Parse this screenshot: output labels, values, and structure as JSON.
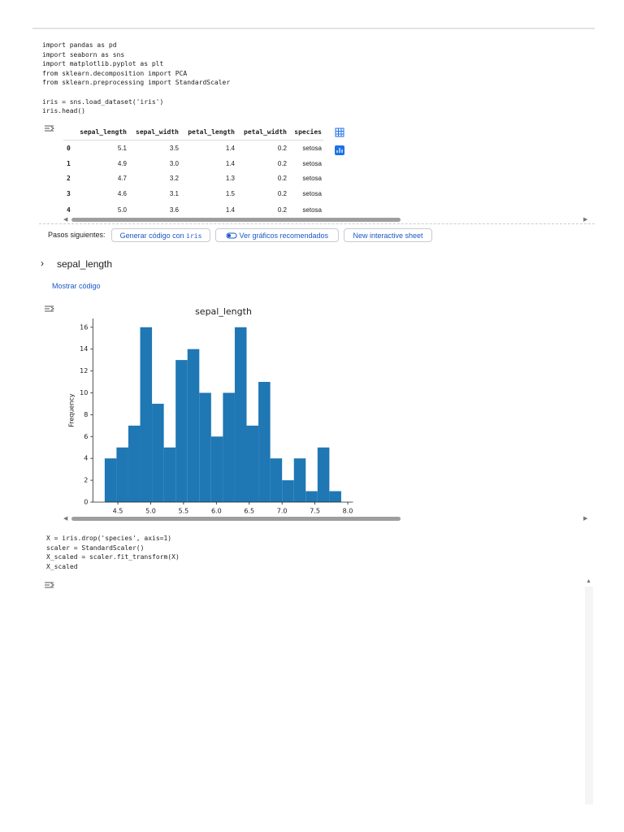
{
  "code_cell_1": {
    "lines": [
      "import pandas as pd",
      "import seaborn as sns",
      "import matplotlib.pyplot as plt",
      "from sklearn.decomposition import PCA",
      "from sklearn.preprocessing import StandardScaler",
      "iris = sns.load_dataset('iris')",
      "iris.head()"
    ]
  },
  "table": {
    "header": [
      "sepal_length",
      "sepal_width",
      "petal_length",
      "petal_width",
      "species"
    ],
    "rows": [
      [
        "0",
        "5.1",
        "3.5",
        "1.4",
        "0.2",
        "setosa"
      ],
      [
        "1",
        "4.9",
        "3.0",
        "1.4",
        "0.2",
        "setosa"
      ],
      [
        "2",
        "4.7",
        "3.2",
        "1.3",
        "0.2",
        "setosa"
      ],
      [
        "3",
        "4.6",
        "3.1",
        "1.5",
        "0.2",
        "setosa"
      ],
      [
        "4",
        "5.0",
        "3.6",
        "1.4",
        "0.2",
        "setosa"
      ]
    ]
  },
  "next_steps": {
    "label": "Pasos siguientes:",
    "buttons": [
      {
        "text": "Generar código con",
        "code": "iris"
      },
      {
        "text": "Ver gráficos recomendados"
      },
      {
        "text": "New interactive sheet"
      }
    ]
  },
  "section": {
    "title": "sepal_length",
    "show_code": "Mostrar código"
  },
  "chart_data": {
    "type": "histogram",
    "title": "sepal_length",
    "y_label": "Frequency",
    "color": "#1f77b4",
    "bins": [
      4.3,
      4.48,
      4.66,
      4.84,
      5.02,
      5.2,
      5.38,
      5.56,
      5.74,
      5.92,
      6.1,
      6.28,
      6.46,
      6.64,
      6.82,
      7.0,
      7.18,
      7.36,
      7.54,
      7.72,
      7.9
    ],
    "values": [
      4,
      5,
      7,
      16,
      9,
      5,
      13,
      14,
      10,
      6,
      10,
      16,
      7,
      11,
      4,
      2,
      4,
      1,
      5,
      1
    ],
    "xlim": [
      4.12,
      8.08
    ],
    "ylim": [
      0,
      16.8
    ],
    "xticks": [
      4.5,
      {
        "value": 5,
        "label": "5.0"
      },
      5.5,
      {
        "value": 6,
        "label": "6.0"
      },
      6.5,
      {
        "value": 7,
        "label": "7.0"
      },
      7.5,
      {
        "value": 8,
        "label": "8.0"
      }
    ],
    "yticks": [
      0,
      2,
      4,
      6,
      8,
      10,
      12,
      14,
      16
    ],
    "grid": false
  },
  "code_cell_2": {
    "lines": [
      "X = iris.drop('species', axis=1)",
      "scaler = StandardScaler()",
      "X_scaled = scaler.fit_transform(X)",
      "X_scaled"
    ]
  }
}
